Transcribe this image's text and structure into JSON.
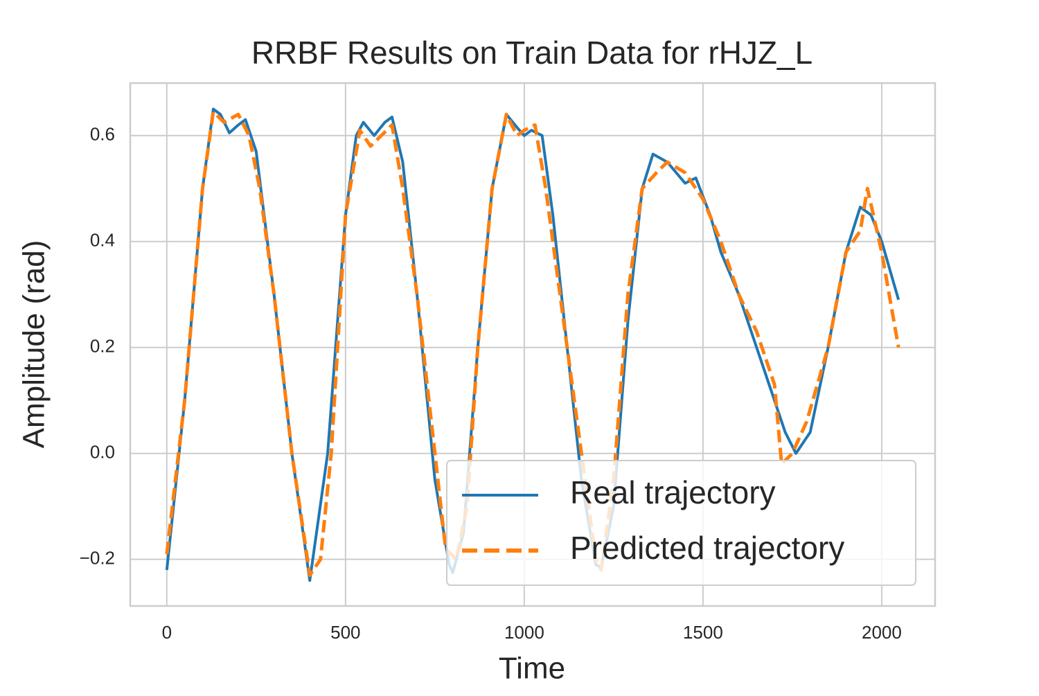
{
  "chart_data": {
    "type": "line",
    "title": "RRBF Results on Train Data for rHJZ_L",
    "x_label": "Time",
    "y_label": "Amplitude (rad)",
    "xlim": [
      -102.35,
      2149.35
    ],
    "ylim": [
      -0.288,
      0.699
    ],
    "xticks": [
      0,
      500,
      1000,
      1500,
      2000
    ],
    "yticks": [
      {
        "value": -0.2,
        "label": "−0.2"
      },
      {
        "value": 0,
        "label": "0.0"
      },
      0.2,
      0.4,
      0.6
    ],
    "grid": true,
    "legend": "lower right",
    "series": [
      {
        "name": "Real trajectory",
        "color": "#1f77b4",
        "linestyle": "solid",
        "x": [
          0,
          50,
          100,
          130,
          150,
          175,
          200,
          220,
          250,
          300,
          350,
          400,
          450,
          500,
          530,
          550,
          580,
          610,
          630,
          660,
          700,
          750,
          790,
          800,
          830,
          870,
          910,
          950,
          980,
          1000,
          1020,
          1050,
          1080,
          1120,
          1160,
          1200,
          1215,
          1250,
          1290,
          1330,
          1360,
          1400,
          1450,
          1480,
          1520,
          1550,
          1600,
          1650,
          1700,
          1730,
          1760,
          1800,
          1850,
          1900,
          1940,
          1970,
          2000,
          2047
        ],
        "values": [
          -0.22,
          0.1,
          0.5,
          0.65,
          0.64,
          0.605,
          0.62,
          0.63,
          0.57,
          0.3,
          0.0,
          -0.24,
          0.0,
          0.45,
          0.6,
          0.625,
          0.6,
          0.625,
          0.635,
          0.55,
          0.3,
          -0.05,
          -0.21,
          -0.225,
          -0.15,
          0.2,
          0.5,
          0.64,
          0.615,
          0.6,
          0.61,
          0.6,
          0.45,
          0.2,
          -0.05,
          -0.21,
          -0.215,
          -0.1,
          0.25,
          0.5,
          0.565,
          0.55,
          0.51,
          0.52,
          0.45,
          0.38,
          0.3,
          0.2,
          0.1,
          0.04,
          0.0,
          0.04,
          0.2,
          0.38,
          0.465,
          0.45,
          0.4,
          0.29
        ]
      },
      {
        "name": "Predicted trajectory",
        "color": "#ff7f0e",
        "linestyle": "dashed",
        "x": [
          0,
          50,
          100,
          130,
          160,
          200,
          230,
          260,
          300,
          350,
          400,
          430,
          460,
          500,
          540,
          570,
          600,
          630,
          660,
          700,
          750,
          780,
          810,
          840,
          870,
          910,
          950,
          980,
          1000,
          1030,
          1060,
          1100,
          1160,
          1200,
          1215,
          1250,
          1290,
          1330,
          1370,
          1400,
          1450,
          1500,
          1550,
          1600,
          1650,
          1700,
          1720,
          1750,
          1790,
          1850,
          1900,
          1940,
          1960,
          2000,
          2047
        ],
        "values": [
          -0.19,
          0.1,
          0.5,
          0.645,
          0.625,
          0.64,
          0.6,
          0.5,
          0.3,
          0.0,
          -0.23,
          -0.2,
          0.0,
          0.45,
          0.61,
          0.58,
          0.6,
          0.62,
          0.5,
          0.3,
          0.0,
          -0.18,
          -0.2,
          -0.1,
          0.2,
          0.5,
          0.64,
          0.6,
          0.61,
          0.62,
          0.5,
          0.3,
          0.0,
          -0.2,
          -0.22,
          -0.05,
          0.3,
          0.5,
          0.53,
          0.55,
          0.53,
          0.48,
          0.4,
          0.3,
          0.23,
          0.13,
          -0.02,
          0.0,
          0.06,
          0.2,
          0.38,
          0.42,
          0.5,
          0.38,
          0.2
        ]
      }
    ]
  }
}
